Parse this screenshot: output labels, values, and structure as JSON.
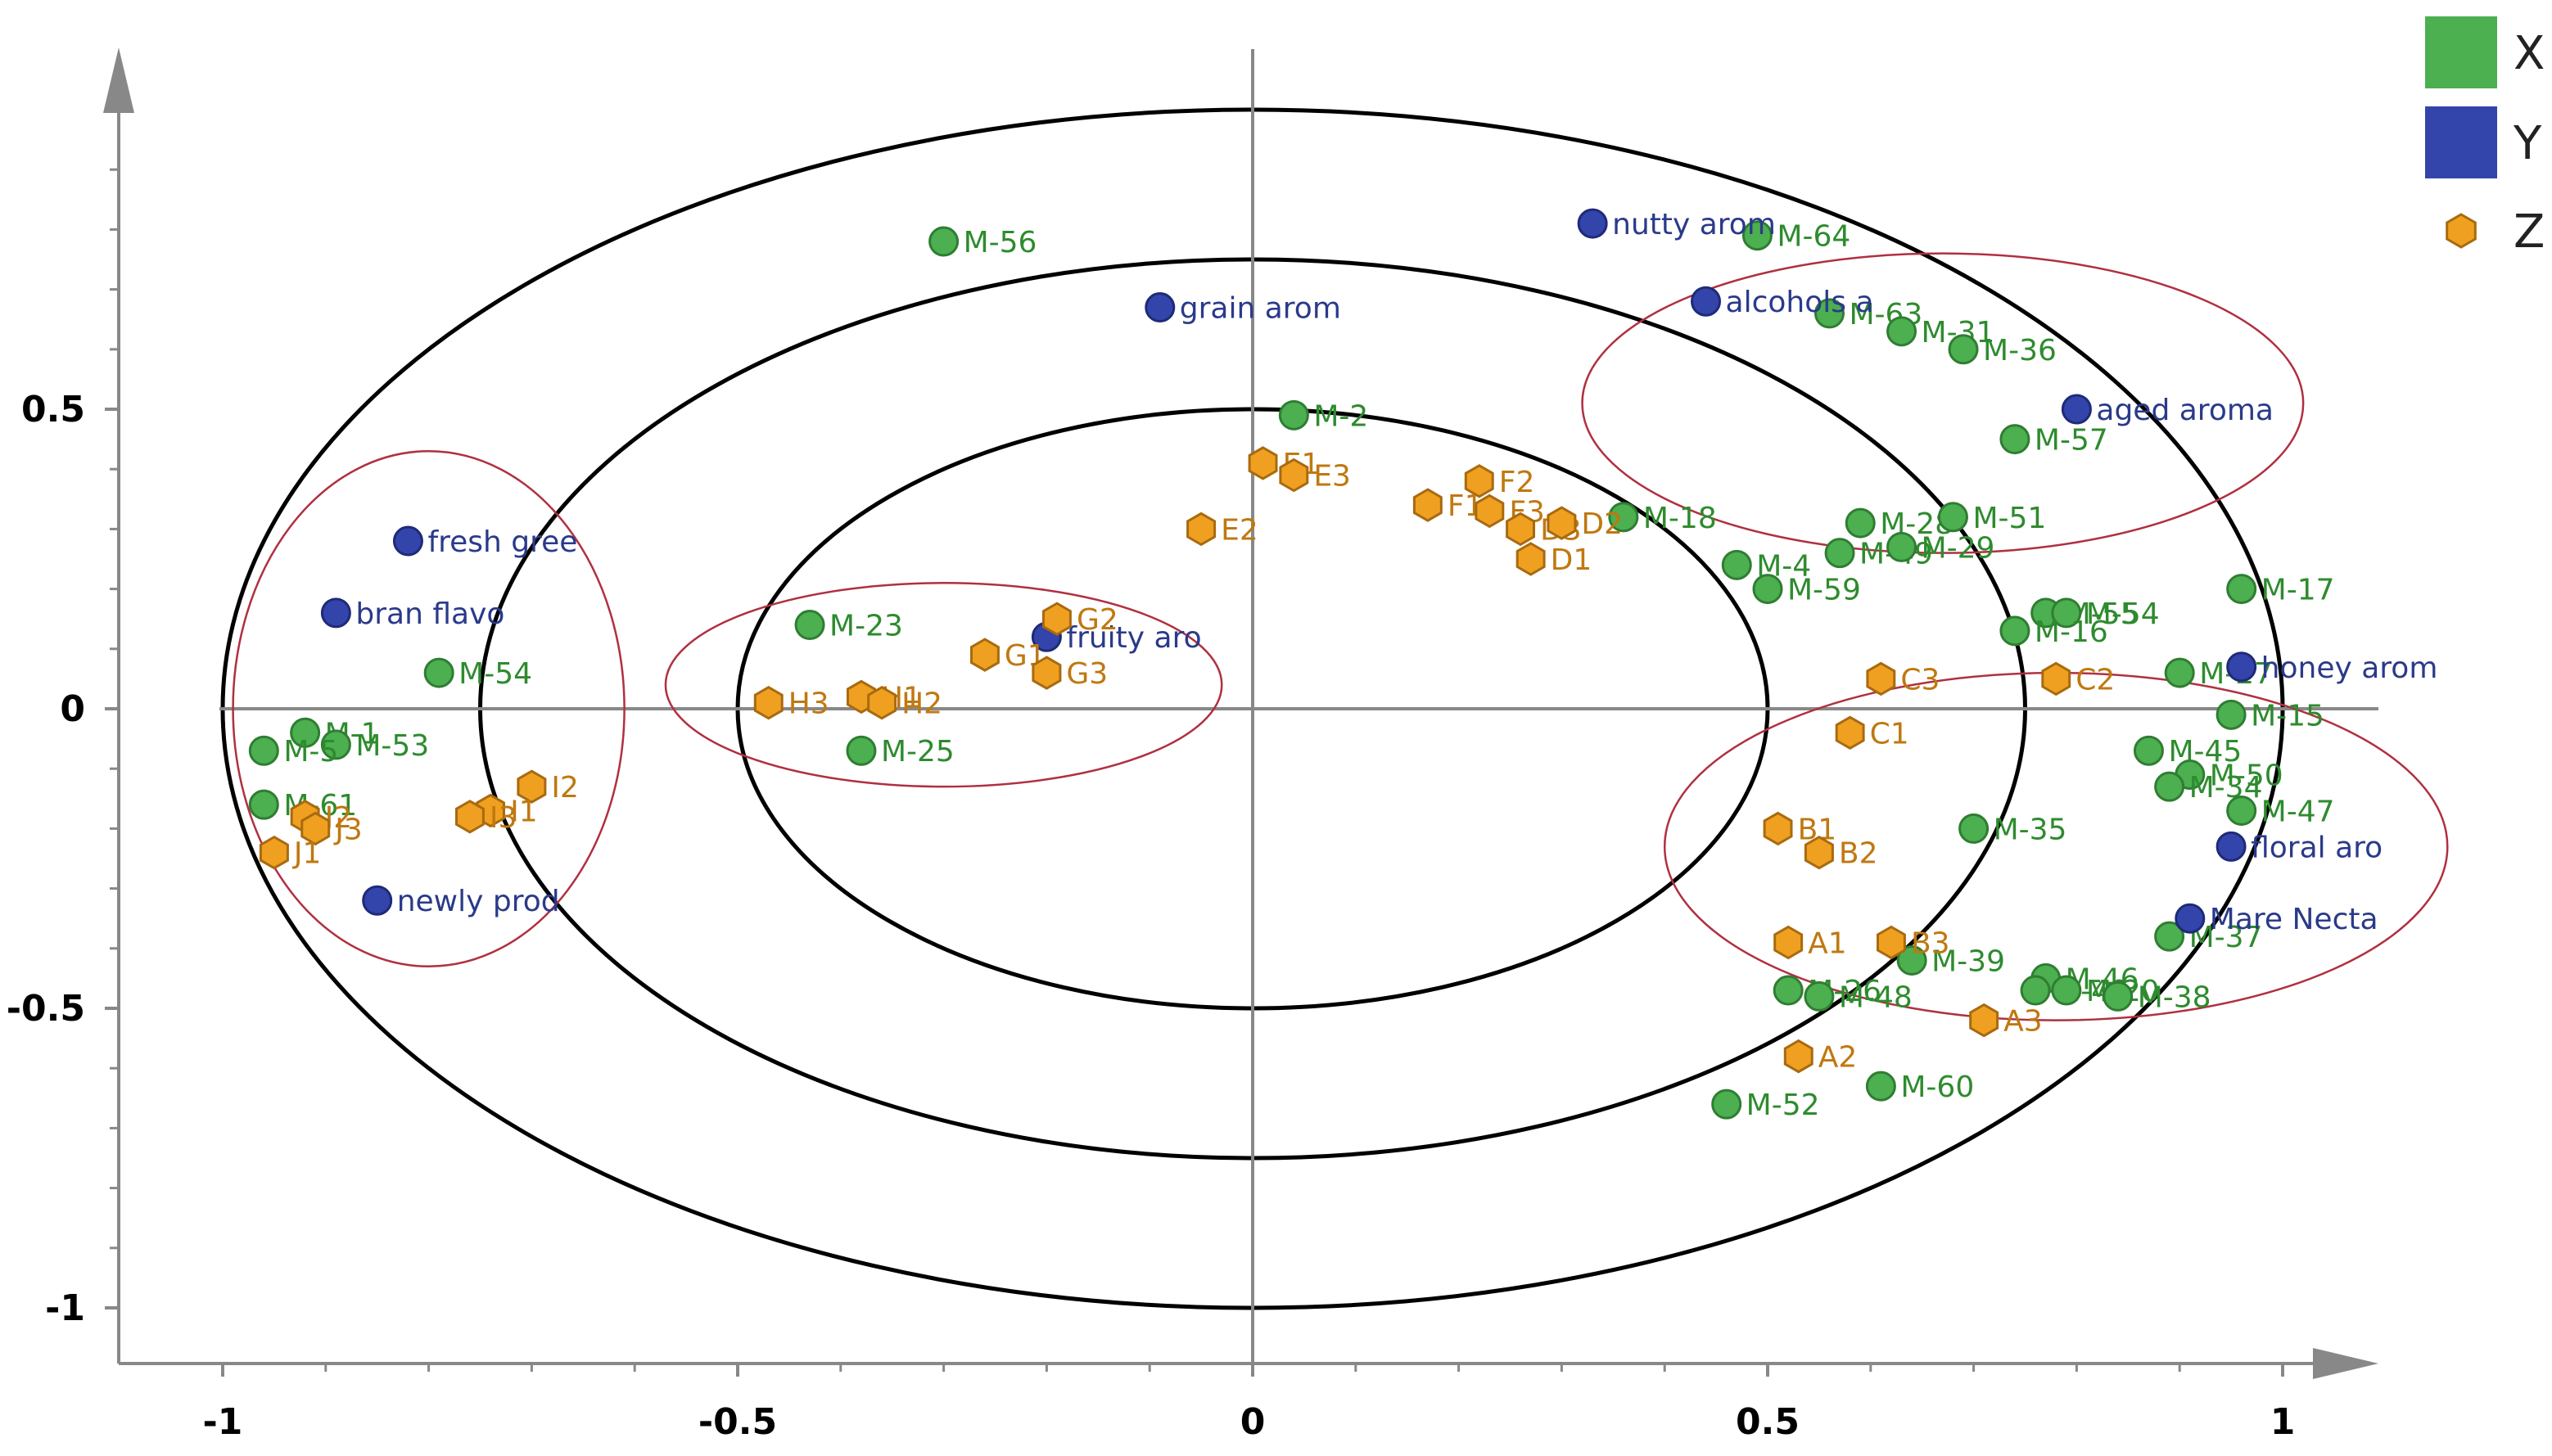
{
  "chart_data": {
    "type": "scatter",
    "title": "",
    "xlabel": "",
    "ylabel": "",
    "xlim": [
      -1.1,
      1.1
    ],
    "ylim": [
      -1.1,
      1.1
    ],
    "x_ticks": [
      {
        "value": -1,
        "label": "-1"
      },
      {
        "value": -0.5,
        "label": "-0.5"
      },
      {
        "value": 0,
        "label": "0"
      },
      {
        "value": 0.5,
        "label": "0.5"
      },
      {
        "value": 1,
        "label": "1"
      }
    ],
    "y_ticks": [
      {
        "value": 0.5,
        "label": "0.5"
      },
      {
        "value": 0,
        "label": "0"
      },
      {
        "value": -0.5,
        "label": "-0.5"
      },
      {
        "value": -1,
        "label": "-1"
      }
    ],
    "colors": {
      "X": "#4caf50",
      "Y": "#3344aa",
      "Z": "#f0a020",
      "X_text": "#2e8b2e",
      "Y_text": "#2a3a8a",
      "Z_text": "#c07810",
      "cluster": "#b03040"
    },
    "reference_circles": [
      {
        "radius": 0.5
      },
      {
        "radius": 0.75
      },
      {
        "radius": 1.0
      }
    ],
    "cluster_ellipses": [
      {
        "cx": -0.8,
        "cy": 0.0,
        "rx": 0.19,
        "ry": 0.43
      },
      {
        "cx": -0.3,
        "cy": 0.04,
        "rx": 0.27,
        "ry": 0.17
      },
      {
        "cx": 0.67,
        "cy": 0.51,
        "rx": 0.35,
        "ry": 0.25
      },
      {
        "cx": 0.78,
        "cy": -0.23,
        "rx": 0.38,
        "ry": 0.29
      }
    ],
    "legend": [
      {
        "name": "X",
        "marker": "square"
      },
      {
        "name": "Y",
        "marker": "square"
      },
      {
        "name": "Z",
        "marker": "hexagon"
      }
    ],
    "series": [
      {
        "name": "X",
        "marker": "circle",
        "points": [
          {
            "label": "M-56",
            "x": -0.3,
            "y": 0.78
          },
          {
            "label": "M-64",
            "x": 0.49,
            "y": 0.79
          },
          {
            "label": "M-63",
            "x": 0.56,
            "y": 0.66
          },
          {
            "label": "M-31",
            "x": 0.63,
            "y": 0.63
          },
          {
            "label": "M-36",
            "x": 0.69,
            "y": 0.6
          },
          {
            "label": "M-57",
            "x": 0.74,
            "y": 0.45
          },
          {
            "label": "M-2",
            "x": 0.04,
            "y": 0.49
          },
          {
            "label": "M-18",
            "x": 0.36,
            "y": 0.32
          },
          {
            "label": "M-28",
            "x": 0.59,
            "y": 0.31
          },
          {
            "label": "M-51",
            "x": 0.68,
            "y": 0.32
          },
          {
            "label": "M-49",
            "x": 0.57,
            "y": 0.26
          },
          {
            "label": "M-29",
            "x": 0.63,
            "y": 0.27
          },
          {
            "label": "M-4",
            "x": 0.47,
            "y": 0.24
          },
          {
            "label": "M-59",
            "x": 0.5,
            "y": 0.2
          },
          {
            "label": "M-17",
            "x": 0.96,
            "y": 0.2
          },
          {
            "label": "M-55",
            "x": 0.77,
            "y": 0.16
          },
          {
            "label": "M-54",
            "x": 0.79,
            "y": 0.16
          },
          {
            "label": "M-16",
            "x": 0.74,
            "y": 0.13
          },
          {
            "label": "M-27",
            "x": 0.9,
            "y": 0.06
          },
          {
            "label": "M-15",
            "x": 0.95,
            "y": -0.01
          },
          {
            "label": "M-45",
            "x": 0.87,
            "y": -0.07
          },
          {
            "label": "M-50",
            "x": 0.91,
            "y": -0.11
          },
          {
            "label": "M-34",
            "x": 0.89,
            "y": -0.13
          },
          {
            "label": "M-47",
            "x": 0.96,
            "y": -0.17
          },
          {
            "label": "M-35",
            "x": 0.7,
            "y": -0.2
          },
          {
            "label": "M-37",
            "x": 0.89,
            "y": -0.38
          },
          {
            "label": "M-39",
            "x": 0.64,
            "y": -0.42
          },
          {
            "label": "M-46",
            "x": 0.77,
            "y": -0.45
          },
          {
            "label": "M-40",
            "x": 0.76,
            "y": -0.47
          },
          {
            "label": "M-20",
            "x": 0.79,
            "y": -0.47
          },
          {
            "label": "M-38",
            "x": 0.84,
            "y": -0.48
          },
          {
            "label": "M-26",
            "x": 0.52,
            "y": -0.47
          },
          {
            "label": "M-48",
            "x": 0.55,
            "y": -0.48
          },
          {
            "label": "M-60",
            "x": 0.61,
            "y": -0.63
          },
          {
            "label": "M-52",
            "x": 0.46,
            "y": -0.66
          },
          {
            "label": "M-23",
            "x": -0.43,
            "y": 0.14
          },
          {
            "label": "M-25",
            "x": -0.38,
            "y": -0.07
          },
          {
            "label": "M-54",
            "x": -0.79,
            "y": 0.06
          },
          {
            "label": "M-1",
            "x": -0.92,
            "y": -0.04
          },
          {
            "label": "M-53",
            "x": -0.89,
            "y": -0.06
          },
          {
            "label": "M-5",
            "x": -0.96,
            "y": -0.07
          },
          {
            "label": "M-61",
            "x": -0.96,
            "y": -0.16
          }
        ]
      },
      {
        "name": "Y",
        "marker": "circle",
        "points": [
          {
            "label": "nutty arom",
            "x": 0.33,
            "y": 0.81
          },
          {
            "label": "alcohols a",
            "x": 0.44,
            "y": 0.68
          },
          {
            "label": "grain arom",
            "x": -0.09,
            "y": 0.67
          },
          {
            "label": "aged aroma",
            "x": 0.8,
            "y": 0.5
          },
          {
            "label": "fresh gree",
            "x": -0.82,
            "y": 0.28
          },
          {
            "label": "bran flavo",
            "x": -0.89,
            "y": 0.16
          },
          {
            "label": "fruity aro",
            "x": -0.2,
            "y": 0.12
          },
          {
            "label": "honey arom",
            "x": 0.96,
            "y": 0.07
          },
          {
            "label": "floral aro",
            "x": 0.95,
            "y": -0.23
          },
          {
            "label": "Mare Necta",
            "x": 0.91,
            "y": -0.35
          },
          {
            "label": "newly prod",
            "x": -0.85,
            "y": -0.32
          }
        ]
      },
      {
        "name": "Z",
        "marker": "hexagon",
        "points": [
          {
            "label": "E1",
            "x": 0.01,
            "y": 0.41
          },
          {
            "label": "E3",
            "x": 0.04,
            "y": 0.39
          },
          {
            "label": "E2",
            "x": -0.05,
            "y": 0.3
          },
          {
            "label": "F2",
            "x": 0.22,
            "y": 0.38
          },
          {
            "label": "F1",
            "x": 0.17,
            "y": 0.34
          },
          {
            "label": "F3",
            "x": 0.23,
            "y": 0.33
          },
          {
            "label": "D3",
            "x": 0.26,
            "y": 0.3
          },
          {
            "label": "D2",
            "x": 0.3,
            "y": 0.31
          },
          {
            "label": "D1",
            "x": 0.27,
            "y": 0.25
          },
          {
            "label": "G2",
            "x": -0.19,
            "y": 0.15
          },
          {
            "label": "G1",
            "x": -0.26,
            "y": 0.09
          },
          {
            "label": "G3",
            "x": -0.2,
            "y": 0.06
          },
          {
            "label": "H3",
            "x": -0.47,
            "y": 0.01
          },
          {
            "label": "H1",
            "x": -0.38,
            "y": 0.02
          },
          {
            "label": "H2",
            "x": -0.36,
            "y": 0.01
          },
          {
            "label": "C3",
            "x": 0.61,
            "y": 0.05
          },
          {
            "label": "C2",
            "x": 0.78,
            "y": 0.05
          },
          {
            "label": "C1",
            "x": 0.58,
            "y": -0.04
          },
          {
            "label": "B1",
            "x": 0.51,
            "y": -0.2
          },
          {
            "label": "B2",
            "x": 0.55,
            "y": -0.24
          },
          {
            "label": "A1",
            "x": 0.52,
            "y": -0.39
          },
          {
            "label": "B3",
            "x": 0.62,
            "y": -0.39
          },
          {
            "label": "A3",
            "x": 0.71,
            "y": -0.52
          },
          {
            "label": "A2",
            "x": 0.53,
            "y": -0.58
          },
          {
            "label": "I2",
            "x": -0.7,
            "y": -0.13
          },
          {
            "label": "I1",
            "x": -0.74,
            "y": -0.17
          },
          {
            "label": "I3",
            "x": -0.76,
            "y": -0.18
          },
          {
            "label": "J2",
            "x": -0.92,
            "y": -0.18
          },
          {
            "label": "J3",
            "x": -0.91,
            "y": -0.2
          },
          {
            "label": "J1",
            "x": -0.95,
            "y": -0.24
          }
        ]
      }
    ]
  }
}
